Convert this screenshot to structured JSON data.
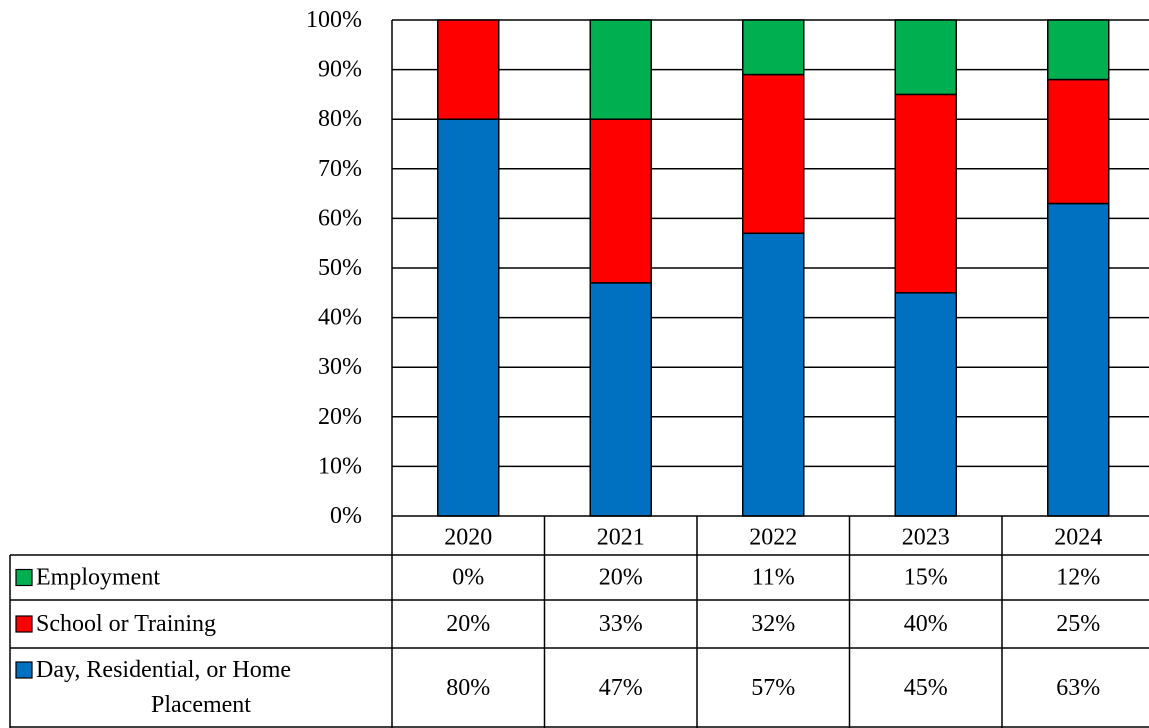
{
  "chart_data": {
    "type": "bar",
    "stacked": true,
    "percent": true,
    "categories": [
      "2020",
      "2021",
      "2022",
      "2023",
      "2024"
    ],
    "series": [
      {
        "name": "Day, Residential, or Home Placement",
        "values": [
          80,
          47,
          57,
          45,
          63
        ],
        "color": "#0070C0"
      },
      {
        "name": "School or Training",
        "values": [
          20,
          33,
          32,
          40,
          25
        ],
        "color": "#FF0000"
      },
      {
        "name": "Employment",
        "values": [
          0,
          20,
          11,
          15,
          12
        ],
        "color": "#00B050"
      }
    ],
    "table_rows": [
      {
        "label": "Employment",
        "values": [
          "0%",
          "20%",
          "11%",
          "15%",
          "12%"
        ],
        "color": "#00B050"
      },
      {
        "label": "School or Training",
        "values": [
          "20%",
          "33%",
          "32%",
          "40%",
          "25%"
        ],
        "color": "#FF0000"
      },
      {
        "label_lines": [
          "Day, Residential, or Home",
          "Placement"
        ],
        "values": [
          "80%",
          "47%",
          "57%",
          "45%",
          "63%"
        ],
        "color": "#0070C0"
      }
    ],
    "y_ticks": [
      "0%",
      "10%",
      "20%",
      "30%",
      "40%",
      "50%",
      "60%",
      "70%",
      "80%",
      "90%",
      "100%"
    ],
    "ylim": [
      0,
      100
    ],
    "grid": true,
    "legend": "data-table",
    "title": "",
    "xlabel": "",
    "ylabel": ""
  }
}
